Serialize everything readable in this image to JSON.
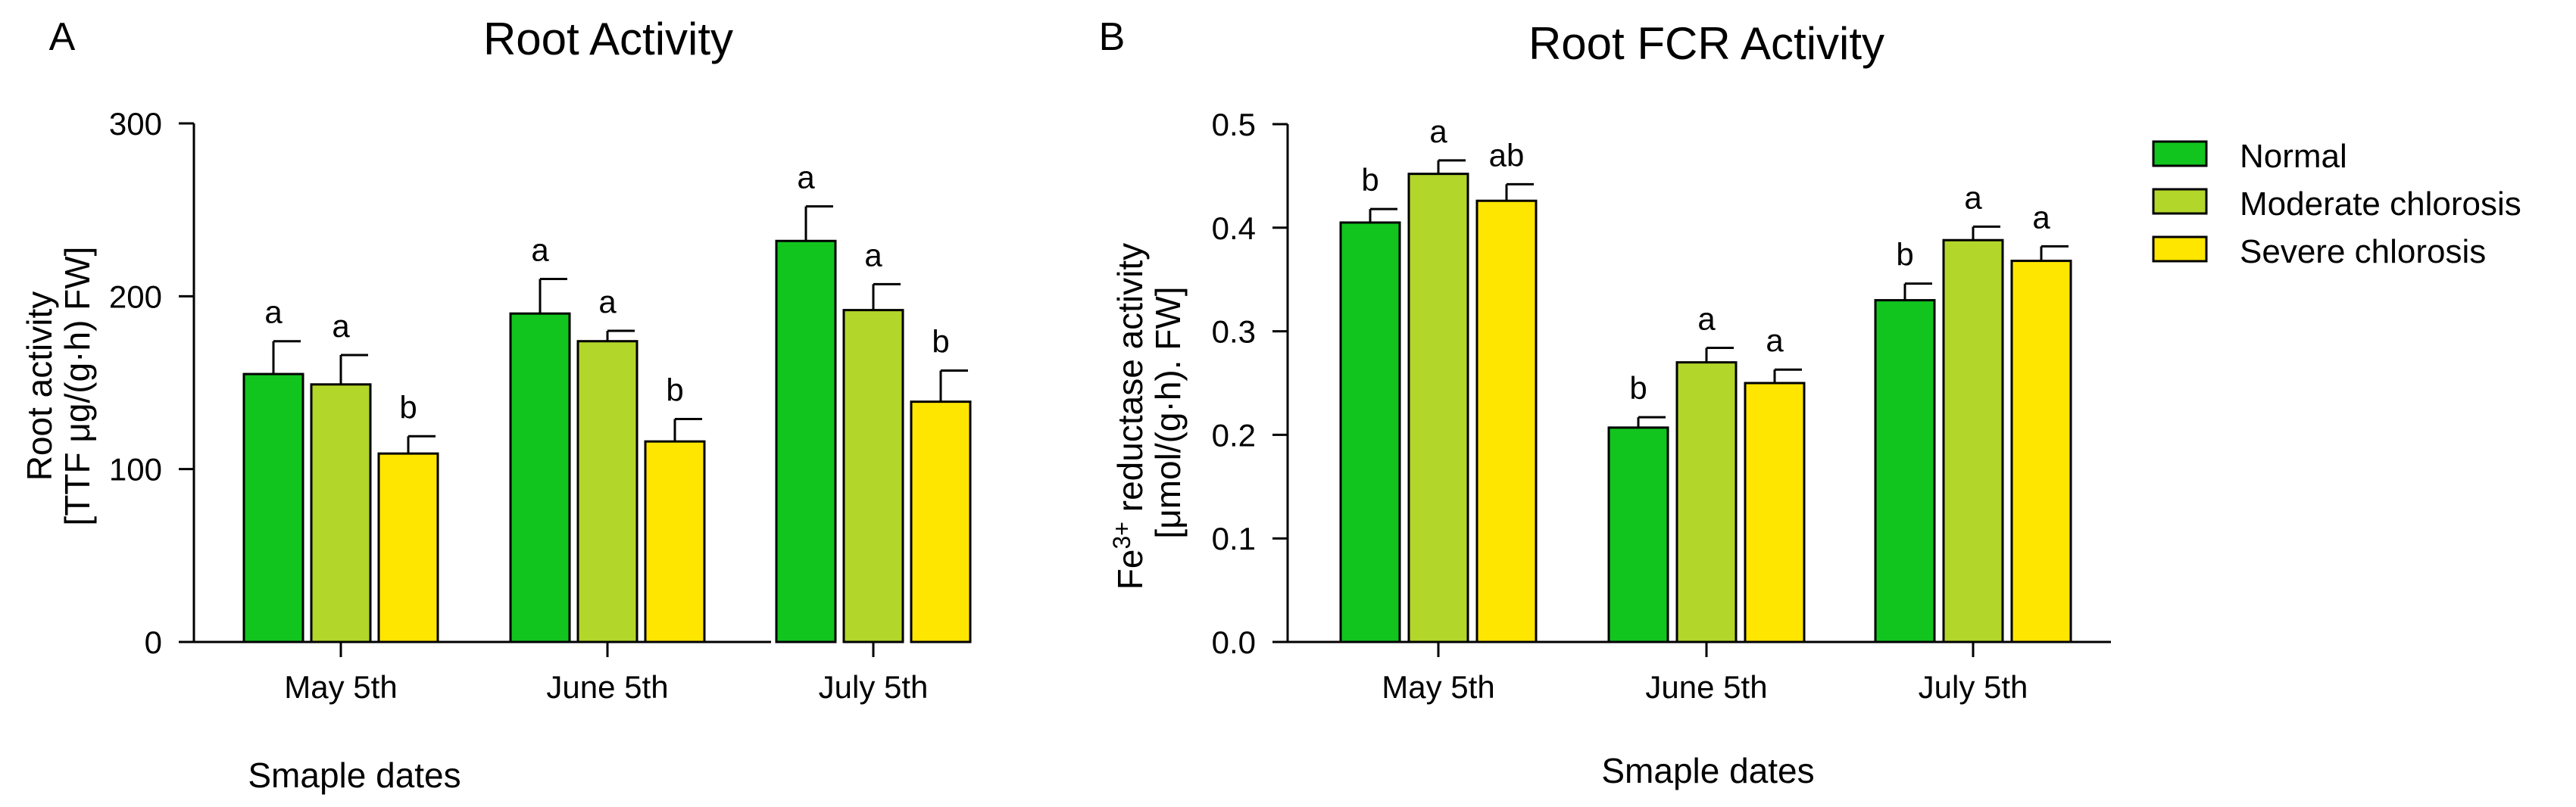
{
  "legend": [
    {
      "label": "Normal",
      "color": "#12c41e"
    },
    {
      "label": "Moderate chlorosis",
      "color": "#b2d62a"
    },
    {
      "label": "Severe chlorosis",
      "color": "#ffe600"
    }
  ],
  "chart_data": [
    {
      "type": "bar",
      "panel": "A",
      "title": "Root Activity",
      "xlabel": "Smaple dates",
      "ylabel_line1": "Root activity",
      "ylabel_line2": "[TTF μg/(g·h)  FW]",
      "ylim": [
        0,
        300
      ],
      "yticks": [
        0,
        100,
        200,
        300
      ],
      "ytick_labels": [
        "0",
        "100",
        "200",
        "300"
      ],
      "categories": [
        "May 5th",
        "June 5th",
        "July 5th"
      ],
      "series": [
        {
          "name": "Normal",
          "values": [
            155,
            190,
            232
          ],
          "errors": [
            19,
            20,
            20
          ],
          "letters": [
            "a",
            "a",
            "a"
          ]
        },
        {
          "name": "Moderate chlorosis",
          "values": [
            149,
            174,
            192
          ],
          "errors": [
            17,
            6,
            15
          ],
          "letters": [
            "a",
            "a",
            "a"
          ]
        },
        {
          "name": "Severe chlorosis",
          "values": [
            109,
            116,
            139
          ],
          "errors": [
            10,
            13,
            18
          ],
          "letters": [
            "b",
            "b",
            "b"
          ]
        }
      ]
    },
    {
      "type": "bar",
      "panel": "B",
      "title": "Root FCR Activity",
      "xlabel": "Smaple dates",
      "ylabel_line1": "Fe3+ reductase activity",
      "ylabel_line2": "[μmol/(g·h). FW]",
      "ylim": [
        0,
        0.5
      ],
      "yticks": [
        0,
        0.1,
        0.2,
        0.3,
        0.4,
        0.5
      ],
      "ytick_labels": [
        "0.0",
        "0.1",
        "0.2",
        "0.3",
        "0.4",
        "0.5"
      ],
      "categories": [
        "May 5th",
        "June 5th",
        "July 5th"
      ],
      "series": [
        {
          "name": "Normal",
          "values": [
            0.405,
            0.207,
            0.33
          ],
          "errors": [
            0.013,
            0.01,
            0.016
          ],
          "letters": [
            "b",
            "b",
            "b"
          ]
        },
        {
          "name": "Moderate chlorosis",
          "values": [
            0.452,
            0.27,
            0.388
          ],
          "errors": [
            0.013,
            0.014,
            0.013
          ],
          "letters": [
            "a",
            "a",
            "a"
          ]
        },
        {
          "name": "Severe chlorosis",
          "values": [
            0.426,
            0.25,
            0.368
          ],
          "errors": [
            0.016,
            0.013,
            0.014
          ],
          "letters": [
            "ab",
            "a",
            "a"
          ]
        }
      ]
    }
  ]
}
